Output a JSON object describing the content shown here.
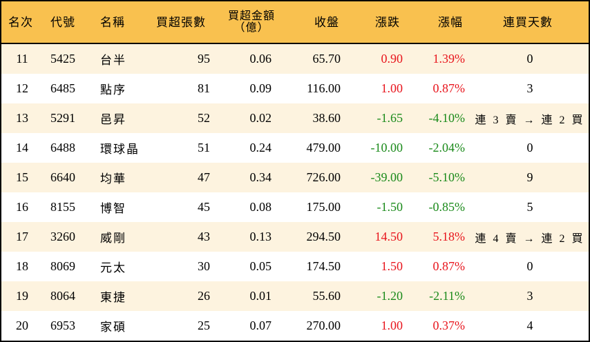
{
  "table": {
    "headers": {
      "rank": "名次",
      "code": "代號",
      "name": "名稱",
      "net_buy_lots": "買超張數",
      "net_buy_amount_line1": "買超金額",
      "net_buy_amount_line2": "（億）",
      "close": "收盤",
      "change": "漲跌",
      "change_pct": "漲幅",
      "consecutive_days": "連買天數"
    },
    "colors": {
      "header_bg": "#F9C14F",
      "row_alt_bg": "#FDF3DF",
      "up": "#E8141C",
      "down": "#1A8A1A",
      "border": "#000000"
    },
    "rows": [
      {
        "rank": "11",
        "code": "5425",
        "name": "台半",
        "lots": "95",
        "amount": "0.06",
        "close": "65.70",
        "change": "0.90",
        "pct": "1.39%",
        "dir": "up",
        "streak": "0"
      },
      {
        "rank": "12",
        "code": "6485",
        "name": "點序",
        "lots": "81",
        "amount": "0.09",
        "close": "116.00",
        "change": "1.00",
        "pct": "0.87%",
        "dir": "up",
        "streak": "3"
      },
      {
        "rank": "13",
        "code": "5291",
        "name": "邑昇",
        "lots": "52",
        "amount": "0.02",
        "close": "38.60",
        "change": "-1.65",
        "pct": "-4.10%",
        "dir": "down",
        "streak": "連 3 賣 → 連 2 買"
      },
      {
        "rank": "14",
        "code": "6488",
        "name": "環球晶",
        "lots": "51",
        "amount": "0.24",
        "close": "479.00",
        "change": "-10.00",
        "pct": "-2.04%",
        "dir": "down",
        "streak": "0"
      },
      {
        "rank": "15",
        "code": "6640",
        "name": "均華",
        "lots": "47",
        "amount": "0.34",
        "close": "726.00",
        "change": "-39.00",
        "pct": "-5.10%",
        "dir": "down",
        "streak": "9"
      },
      {
        "rank": "16",
        "code": "8155",
        "name": "博智",
        "lots": "45",
        "amount": "0.08",
        "close": "175.00",
        "change": "-1.50",
        "pct": "-0.85%",
        "dir": "down",
        "streak": "5"
      },
      {
        "rank": "17",
        "code": "3260",
        "name": "威剛",
        "lots": "43",
        "amount": "0.13",
        "close": "294.50",
        "change": "14.50",
        "pct": "5.18%",
        "dir": "up",
        "streak": "連 4 賣 → 連 2 買"
      },
      {
        "rank": "18",
        "code": "8069",
        "name": "元太",
        "lots": "30",
        "amount": "0.05",
        "close": "174.50",
        "change": "1.50",
        "pct": "0.87%",
        "dir": "up",
        "streak": "0"
      },
      {
        "rank": "19",
        "code": "8064",
        "name": "東捷",
        "lots": "26",
        "amount": "0.01",
        "close": "55.60",
        "change": "-1.20",
        "pct": "-2.11%",
        "dir": "down",
        "streak": "3"
      },
      {
        "rank": "20",
        "code": "6953",
        "name": "家碩",
        "lots": "25",
        "amount": "0.07",
        "close": "270.00",
        "change": "1.00",
        "pct": "0.37%",
        "dir": "up",
        "streak": "4"
      }
    ]
  }
}
